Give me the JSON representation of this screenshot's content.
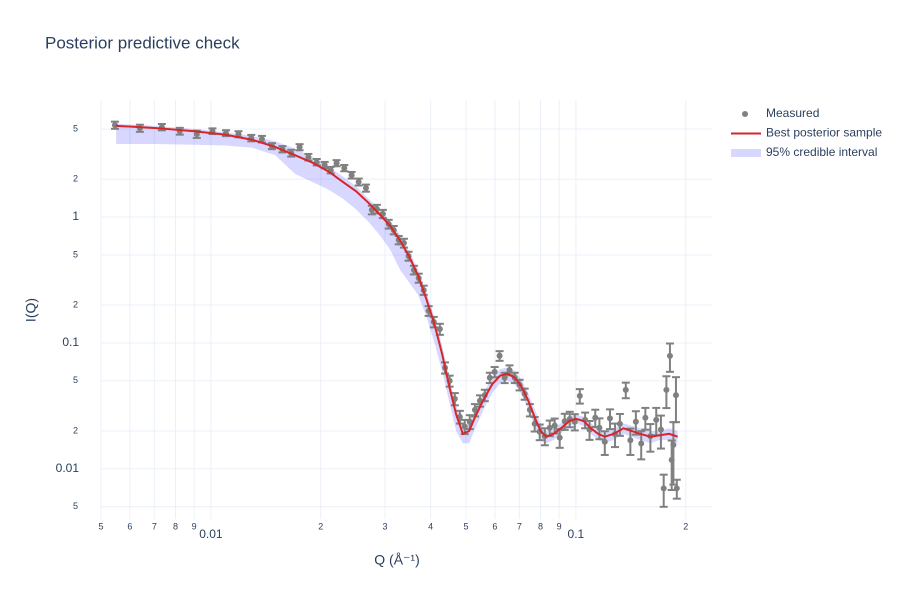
{
  "chart_data": {
    "type": "scatter",
    "title": "Posterior predictive check",
    "x_label": "Q (Å⁻¹)",
    "y_label": "I(Q)",
    "log_x": true,
    "log_y": true,
    "grid": true,
    "legend": "top-right",
    "xlim": [
      0.005,
      0.236
    ],
    "ylim": [
      0.004,
      8.5
    ],
    "xticks": [
      {
        "value": 0.005,
        "label": "5"
      },
      {
        "value": 0.006,
        "label": "6"
      },
      {
        "value": 0.007,
        "label": "7"
      },
      {
        "value": 0.008,
        "label": "8"
      },
      {
        "value": 0.009,
        "label": "9"
      },
      0.01,
      {
        "value": 0.02,
        "label": "2"
      },
      {
        "value": 0.03,
        "label": "3"
      },
      {
        "value": 0.04,
        "label": "4"
      },
      {
        "value": 0.05,
        "label": "5"
      },
      {
        "value": 0.06,
        "label": "6"
      },
      {
        "value": 0.07,
        "label": "7"
      },
      {
        "value": 0.08,
        "label": "8"
      },
      {
        "value": 0.09,
        "label": "9"
      },
      0.1,
      {
        "value": 0.2,
        "label": "2"
      }
    ],
    "yticks": [
      {
        "value": 0.005,
        "label": "5"
      },
      0.01,
      {
        "value": 0.02,
        "label": "2"
      },
      {
        "value": 0.05,
        "label": "5"
      },
      0.1,
      {
        "value": 0.2,
        "label": "2"
      },
      {
        "value": 0.5,
        "label": "5"
      },
      1,
      2,
      5
    ],
    "measured": {
      "name": "Measured",
      "color": "#808080",
      "x": [
        0.00546,
        0.00639,
        0.00734,
        0.00822,
        0.00915,
        0.0101,
        0.011,
        0.0119,
        0.0129,
        0.0138,
        0.0147,
        0.0157,
        0.0166,
        0.0175,
        0.0185,
        0.0195,
        0.0205,
        0.0213,
        0.0221,
        0.0232,
        0.0243,
        0.0254,
        0.0266,
        0.0276,
        0.0285,
        0.0296,
        0.0307,
        0.0317,
        0.0327,
        0.0338,
        0.0348,
        0.036,
        0.0371,
        0.0383,
        0.0395,
        0.0408,
        0.0424,
        0.0438,
        0.0451,
        0.0466,
        0.0481,
        0.0496,
        0.0512,
        0.0529,
        0.0546,
        0.0563,
        0.0581,
        0.0599,
        0.0618,
        0.0638,
        0.0658,
        0.068,
        0.0701,
        0.0724,
        0.0748,
        0.0771,
        0.0796,
        0.0822,
        0.0848,
        0.0875,
        0.0903,
        0.0932,
        0.0962,
        0.0993,
        0.1025,
        0.106,
        0.109,
        0.113,
        0.116,
        0.12,
        0.124,
        0.128,
        0.132,
        0.137,
        0.141,
        0.146,
        0.151,
        0.155,
        0.16,
        0.166,
        0.171,
        0.174,
        0.177,
        0.181,
        0.183,
        0.185,
        0.188,
        0.189
      ],
      "values": [
        5.37,
        5.08,
        5.18,
        4.81,
        4.55,
        4.81,
        4.64,
        4.55,
        4.24,
        4.16,
        3.66,
        3.46,
        3.22,
        3.59,
        2.99,
        2.73,
        2.59,
        2.36,
        2.68,
        2.45,
        2.15,
        1.9,
        1.7,
        1.14,
        1.16,
        1.06,
        0.88,
        0.789,
        0.657,
        0.622,
        0.49,
        0.38,
        0.328,
        0.263,
        0.18,
        0.147,
        0.129,
        0.0636,
        0.05,
        0.036,
        0.0259,
        0.0217,
        0.0237,
        0.0294,
        0.0348,
        0.0385,
        0.053,
        0.0589,
        0.0791,
        0.053,
        0.0609,
        0.053,
        0.0465,
        0.0394,
        0.0294,
        0.0228,
        0.0197,
        0.0182,
        0.0212,
        0.0221,
        0.0177,
        0.0239,
        0.0249,
        0.0237,
        0.038,
        0.0245,
        0.0205,
        0.0255,
        0.0212,
        0.0164,
        0.0252,
        0.0189,
        0.0228,
        0.0424,
        0.0169,
        0.0237,
        0.0159,
        0.0255,
        0.0182,
        0.0245,
        0.0205,
        0.007,
        0.0424,
        0.079,
        0.0118,
        0.0155,
        0.0385,
        0.007
      ],
      "errors": [
        0.35,
        0.33,
        0.3,
        0.3,
        0.3,
        0.25,
        0.25,
        0.25,
        0.25,
        0.25,
        0.2,
        0.2,
        0.2,
        0.2,
        0.18,
        0.16,
        0.15,
        0.14,
        0.15,
        0.14,
        0.13,
        0.12,
        0.11,
        0.09,
        0.09,
        0.08,
        0.07,
        0.06,
        0.05,
        0.05,
        0.04,
        0.03,
        0.027,
        0.022,
        0.016,
        0.014,
        0.013,
        0.0065,
        0.005,
        0.004,
        0.003,
        0.0028,
        0.003,
        0.0033,
        0.0036,
        0.004,
        0.005,
        0.0055,
        0.007,
        0.005,
        0.0055,
        0.005,
        0.0045,
        0.004,
        0.0033,
        0.003,
        0.0028,
        0.0028,
        0.003,
        0.003,
        0.003,
        0.0035,
        0.0035,
        0.0035,
        0.005,
        0.0035,
        0.0035,
        0.004,
        0.004,
        0.0035,
        0.0045,
        0.004,
        0.0045,
        0.006,
        0.004,
        0.005,
        0.004,
        0.005,
        0.0045,
        0.006,
        0.006,
        0.002,
        0.012,
        0.02,
        0.005,
        0.008,
        0.015,
        0.0012
      ]
    },
    "best": {
      "name": "Best posterior sample",
      "color": "#d62728",
      "x": [
        0.0055,
        0.007,
        0.009,
        0.011,
        0.013,
        0.015,
        0.017,
        0.019,
        0.021,
        0.023,
        0.025,
        0.027,
        0.029,
        0.031,
        0.033,
        0.035,
        0.037,
        0.039,
        0.041,
        0.043,
        0.045,
        0.047,
        0.049,
        0.051,
        0.053,
        0.056,
        0.059,
        0.062,
        0.065,
        0.068,
        0.071,
        0.074,
        0.077,
        0.08,
        0.083,
        0.087,
        0.091,
        0.096,
        0.1,
        0.105,
        0.11,
        0.115,
        0.12,
        0.127,
        0.135,
        0.142,
        0.15,
        0.16,
        0.17,
        0.18,
        0.19
      ],
      "values": [
        5.3,
        5.1,
        4.8,
        4.5,
        4.1,
        3.6,
        3.1,
        2.7,
        2.3,
        1.9,
        1.6,
        1.3,
        1.05,
        0.85,
        0.65,
        0.48,
        0.34,
        0.22,
        0.14,
        0.082,
        0.045,
        0.027,
        0.019,
        0.02,
        0.026,
        0.036,
        0.047,
        0.055,
        0.057,
        0.053,
        0.045,
        0.035,
        0.026,
        0.02,
        0.018,
        0.019,
        0.021,
        0.024,
        0.025,
        0.024,
        0.021,
        0.019,
        0.018,
        0.019,
        0.021,
        0.02,
        0.019,
        0.018,
        0.0185,
        0.019,
        0.018
      ]
    },
    "band": {
      "name": "95% credible interval",
      "color": "rgba(110,110,255,0.28)",
      "x": [
        0.0055,
        0.007,
        0.009,
        0.011,
        0.013,
        0.015,
        0.017,
        0.019,
        0.021,
        0.023,
        0.025,
        0.027,
        0.029,
        0.031,
        0.033,
        0.035,
        0.037,
        0.039,
        0.041,
        0.043,
        0.045,
        0.047,
        0.049,
        0.051,
        0.053,
        0.056,
        0.059,
        0.062,
        0.065,
        0.068,
        0.071,
        0.074,
        0.077,
        0.08,
        0.083,
        0.087,
        0.091,
        0.096,
        0.1,
        0.105,
        0.11,
        0.115,
        0.12,
        0.127,
        0.135,
        0.142,
        0.15,
        0.16,
        0.17,
        0.18,
        0.19
      ],
      "lower": [
        3.8,
        3.8,
        3.75,
        3.7,
        3.55,
        3.1,
        2.2,
        1.9,
        1.65,
        1.4,
        1.15,
        0.92,
        0.72,
        0.55,
        0.38,
        0.3,
        0.24,
        0.16,
        0.1,
        0.06,
        0.034,
        0.02,
        0.016,
        0.016,
        0.021,
        0.03,
        0.04,
        0.048,
        0.05,
        0.047,
        0.039,
        0.03,
        0.022,
        0.017,
        0.016,
        0.017,
        0.019,
        0.022,
        0.023,
        0.022,
        0.019,
        0.017,
        0.016,
        0.017,
        0.019,
        0.018,
        0.017,
        0.016,
        0.017,
        0.017,
        0.016
      ],
      "upper": [
        5.5,
        5.3,
        5.0,
        4.7,
        4.4,
        4.0,
        3.5,
        3.0,
        2.5,
        2.1,
        1.75,
        1.4,
        1.15,
        0.93,
        0.72,
        0.53,
        0.38,
        0.25,
        0.16,
        0.095,
        0.053,
        0.032,
        0.022,
        0.023,
        0.03,
        0.041,
        0.053,
        0.062,
        0.064,
        0.06,
        0.051,
        0.04,
        0.03,
        0.023,
        0.02,
        0.021,
        0.023,
        0.026,
        0.027,
        0.026,
        0.023,
        0.021,
        0.02,
        0.021,
        0.023,
        0.022,
        0.021,
        0.02,
        0.02,
        0.021,
        0.02
      ]
    }
  }
}
